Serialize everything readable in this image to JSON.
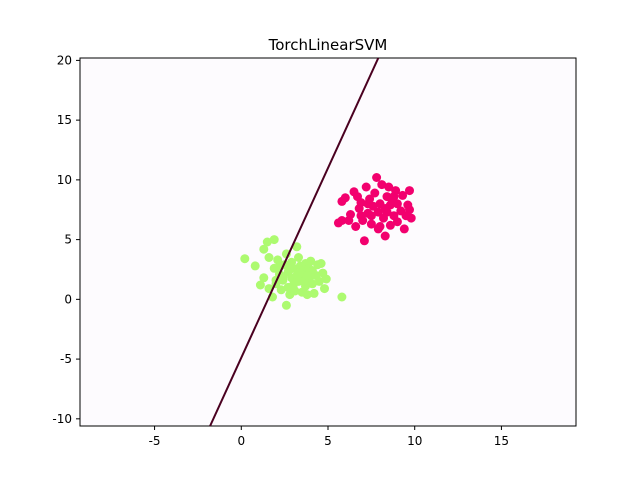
{
  "chart_data": {
    "type": "scatter",
    "title": "TorchLinearSVM",
    "xlabel": "",
    "ylabel": "",
    "xlim": [
      -9.3,
      19.3
    ],
    "ylim": [
      -10.6,
      20.2
    ],
    "xticks": [
      -5,
      0,
      5,
      10,
      15
    ],
    "yticks": [
      -10,
      -5,
      0,
      5,
      10,
      15,
      20
    ],
    "grid": false,
    "plot_background": "#fdfbfe",
    "series": [
      {
        "color": "#adfa70",
        "points": [
          [
            0.2,
            3.4
          ],
          [
            0.8,
            2.8
          ],
          [
            1.3,
            4.2
          ],
          [
            1.5,
            4.8
          ],
          [
            1.9,
            5.0
          ],
          [
            1.6,
            3.5
          ],
          [
            1.1,
            1.2
          ],
          [
            1.3,
            1.8
          ],
          [
            1.6,
            0.9
          ],
          [
            1.8,
            0.2
          ],
          [
            1.9,
            2.6
          ],
          [
            2.0,
            1.3
          ],
          [
            2.1,
            3.3
          ],
          [
            2.2,
            2.1
          ],
          [
            2.3,
            0.8
          ],
          [
            2.4,
            1.6
          ],
          [
            2.5,
            2.9
          ],
          [
            2.6,
            3.8
          ],
          [
            2.7,
            1.0
          ],
          [
            2.7,
            2.3
          ],
          [
            2.8,
            0.4
          ],
          [
            2.9,
            1.8
          ],
          [
            2.9,
            3.1
          ],
          [
            3.0,
            2.6
          ],
          [
            3.0,
            1.2
          ],
          [
            3.1,
            0.7
          ],
          [
            3.2,
            2.0
          ],
          [
            3.2,
            4.4
          ],
          [
            3.3,
            1.5
          ],
          [
            3.3,
            3.5
          ],
          [
            3.4,
            2.8
          ],
          [
            3.5,
            0.6
          ],
          [
            3.5,
            1.9
          ],
          [
            3.6,
            2.4
          ],
          [
            3.7,
            1.1
          ],
          [
            3.7,
            3.0
          ],
          [
            3.8,
            0.4
          ],
          [
            3.9,
            1.7
          ],
          [
            3.9,
            2.6
          ],
          [
            4.0,
            3.2
          ],
          [
            4.1,
            1.3
          ],
          [
            4.2,
            0.5
          ],
          [
            4.3,
            2.0
          ],
          [
            4.4,
            2.9
          ],
          [
            4.5,
            1.5
          ],
          [
            4.6,
            3.0
          ],
          [
            4.7,
            2.2
          ],
          [
            4.9,
            1.7
          ],
          [
            4.8,
            0.9
          ],
          [
            2.6,
            -0.5
          ],
          [
            5.8,
            0.2
          ],
          [
            2.4,
            1.9
          ],
          [
            3.0,
            0.9
          ],
          [
            3.6,
            1.5
          ],
          [
            2.0,
            1.6
          ],
          [
            3.4,
            2.2
          ],
          [
            4.1,
            2.4
          ],
          [
            2.2,
            2.7
          ],
          [
            3.8,
            2.0
          ],
          [
            2.8,
            2.5
          ]
        ]
      },
      {
        "color": "#f2006e",
        "points": [
          [
            5.6,
            6.4
          ],
          [
            5.8,
            6.6
          ],
          [
            5.8,
            8.2
          ],
          [
            6.0,
            8.5
          ],
          [
            6.3,
            7.1
          ],
          [
            6.5,
            9.0
          ],
          [
            6.6,
            6.1
          ],
          [
            6.8,
            7.6
          ],
          [
            6.9,
            8.1
          ],
          [
            7.0,
            6.6
          ],
          [
            7.1,
            4.9
          ],
          [
            7.2,
            9.4
          ],
          [
            7.3,
            7.2
          ],
          [
            7.4,
            8.4
          ],
          [
            7.5,
            6.3
          ],
          [
            7.6,
            7.8
          ],
          [
            7.7,
            8.9
          ],
          [
            7.8,
            10.2
          ],
          [
            7.9,
            5.9
          ],
          [
            7.9,
            7.3
          ],
          [
            8.0,
            8.0
          ],
          [
            8.1,
            9.6
          ],
          [
            8.2,
            6.8
          ],
          [
            8.3,
            5.3
          ],
          [
            8.3,
            7.6
          ],
          [
            8.4,
            8.6
          ],
          [
            8.5,
            9.4
          ],
          [
            8.6,
            6.2
          ],
          [
            8.6,
            7.9
          ],
          [
            8.7,
            8.3
          ],
          [
            8.8,
            7.0
          ],
          [
            8.9,
            9.1
          ],
          [
            9.0,
            6.5
          ],
          [
            9.0,
            8.0
          ],
          [
            9.2,
            7.4
          ],
          [
            9.3,
            8.7
          ],
          [
            9.4,
            5.9
          ],
          [
            9.5,
            7.0
          ],
          [
            9.6,
            7.9
          ],
          [
            9.7,
            9.1
          ],
          [
            9.8,
            6.8
          ],
          [
            9.7,
            7.5
          ],
          [
            6.2,
            6.6
          ],
          [
            6.7,
            8.6
          ],
          [
            7.5,
            7.0
          ],
          [
            8.0,
            6.1
          ],
          [
            8.8,
            8.6
          ],
          [
            7.3,
            8.0
          ],
          [
            8.4,
            7.3
          ],
          [
            6.9,
            7.0
          ]
        ]
      }
    ],
    "line": {
      "color": "#4a0020",
      "x": [
        -1.8,
        7.9
      ],
      "y": [
        -10.6,
        20.2
      ]
    }
  }
}
